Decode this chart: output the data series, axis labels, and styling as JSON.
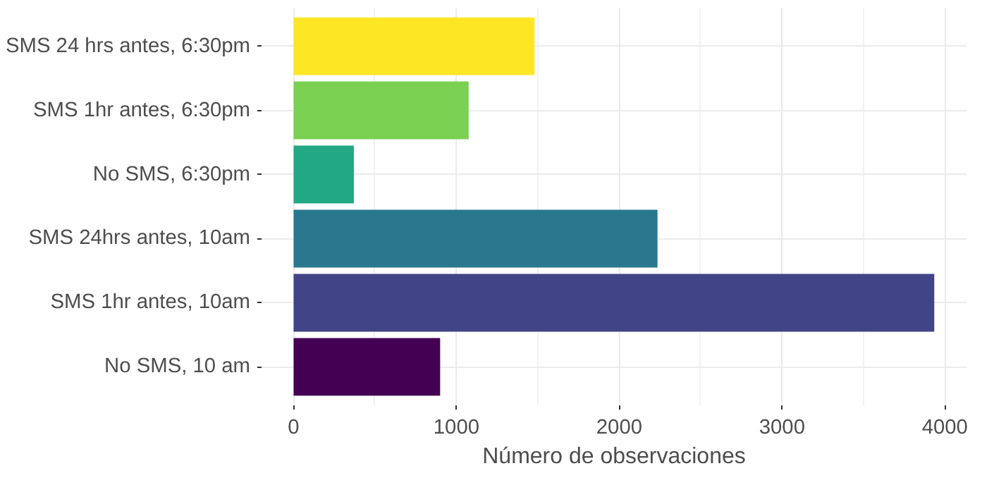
{
  "chart_data": {
    "type": "bar",
    "orientation": "horizontal",
    "xlabel": "Número de observaciones",
    "categories": [
      "SMS 24 hrs antes, 6:30pm",
      "SMS 1hr antes, 6:30pm",
      "No SMS, 6:30pm",
      "SMS 24hrs antes, 10am",
      "SMS 1hr antes, 10am",
      "No SMS, 10 am"
    ],
    "values": [
      1480,
      1075,
      370,
      2235,
      3935,
      900
    ],
    "colors": [
      "#fde725",
      "#7ad151",
      "#22a884",
      "#2a788e",
      "#414487",
      "#440154"
    ],
    "xlim": [
      -197,
      4133
    ],
    "xticks": [
      0,
      1000,
      2000,
      3000,
      4000
    ],
    "grid": true
  }
}
